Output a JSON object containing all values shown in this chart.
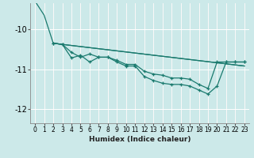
{
  "xlabel": "Humidex (Indice chaleur)",
  "background_color": "#cce9e9",
  "grid_color": "#ffffff",
  "line_color": "#1a7a6e",
  "xlim": [
    -0.5,
    23.5
  ],
  "ylim": [
    -12.35,
    -9.35
  ],
  "yticks": [
    -12,
    -11,
    -10
  ],
  "xticks": [
    0,
    1,
    2,
    3,
    4,
    5,
    6,
    7,
    8,
    9,
    10,
    11,
    12,
    13,
    14,
    15,
    16,
    17,
    18,
    19,
    20,
    21,
    22,
    23
  ],
  "series": [
    {
      "x": [
        0,
        1,
        2,
        3,
        23
      ],
      "y": [
        -9.3,
        -9.65,
        -10.35,
        -10.38,
        -10.92
      ],
      "marker": false
    },
    {
      "x": [
        2,
        3,
        4,
        5,
        6,
        7,
        8,
        9,
        10,
        11,
        12,
        13,
        14,
        15,
        16,
        17,
        18,
        19,
        20,
        21,
        22,
        23
      ],
      "y": [
        -10.35,
        -10.38,
        -10.58,
        -10.7,
        -10.62,
        -10.7,
        -10.7,
        -10.78,
        -10.88,
        -10.88,
        -11.05,
        -11.12,
        -11.15,
        -11.22,
        -11.22,
        -11.25,
        -11.38,
        -11.48,
        -10.82,
        -10.82,
        -10.82,
        -10.82
      ],
      "marker": true
    },
    {
      "x": [
        2,
        3,
        4,
        5,
        6,
        7,
        8,
        9,
        10,
        11,
        12,
        13,
        14,
        15,
        16,
        17,
        18,
        19,
        20,
        21,
        22,
        23
      ],
      "y": [
        -10.35,
        -10.38,
        -10.72,
        -10.65,
        -10.82,
        -10.7,
        -10.7,
        -10.82,
        -10.92,
        -10.92,
        -11.18,
        -11.28,
        -11.35,
        -11.38,
        -11.38,
        -11.42,
        -11.52,
        -11.62,
        -11.42,
        -10.82,
        -10.82,
        -10.82
      ],
      "marker": true
    },
    {
      "x": [
        2,
        3,
        23
      ],
      "y": [
        -10.35,
        -10.38,
        -10.92
      ],
      "marker": false
    }
  ]
}
